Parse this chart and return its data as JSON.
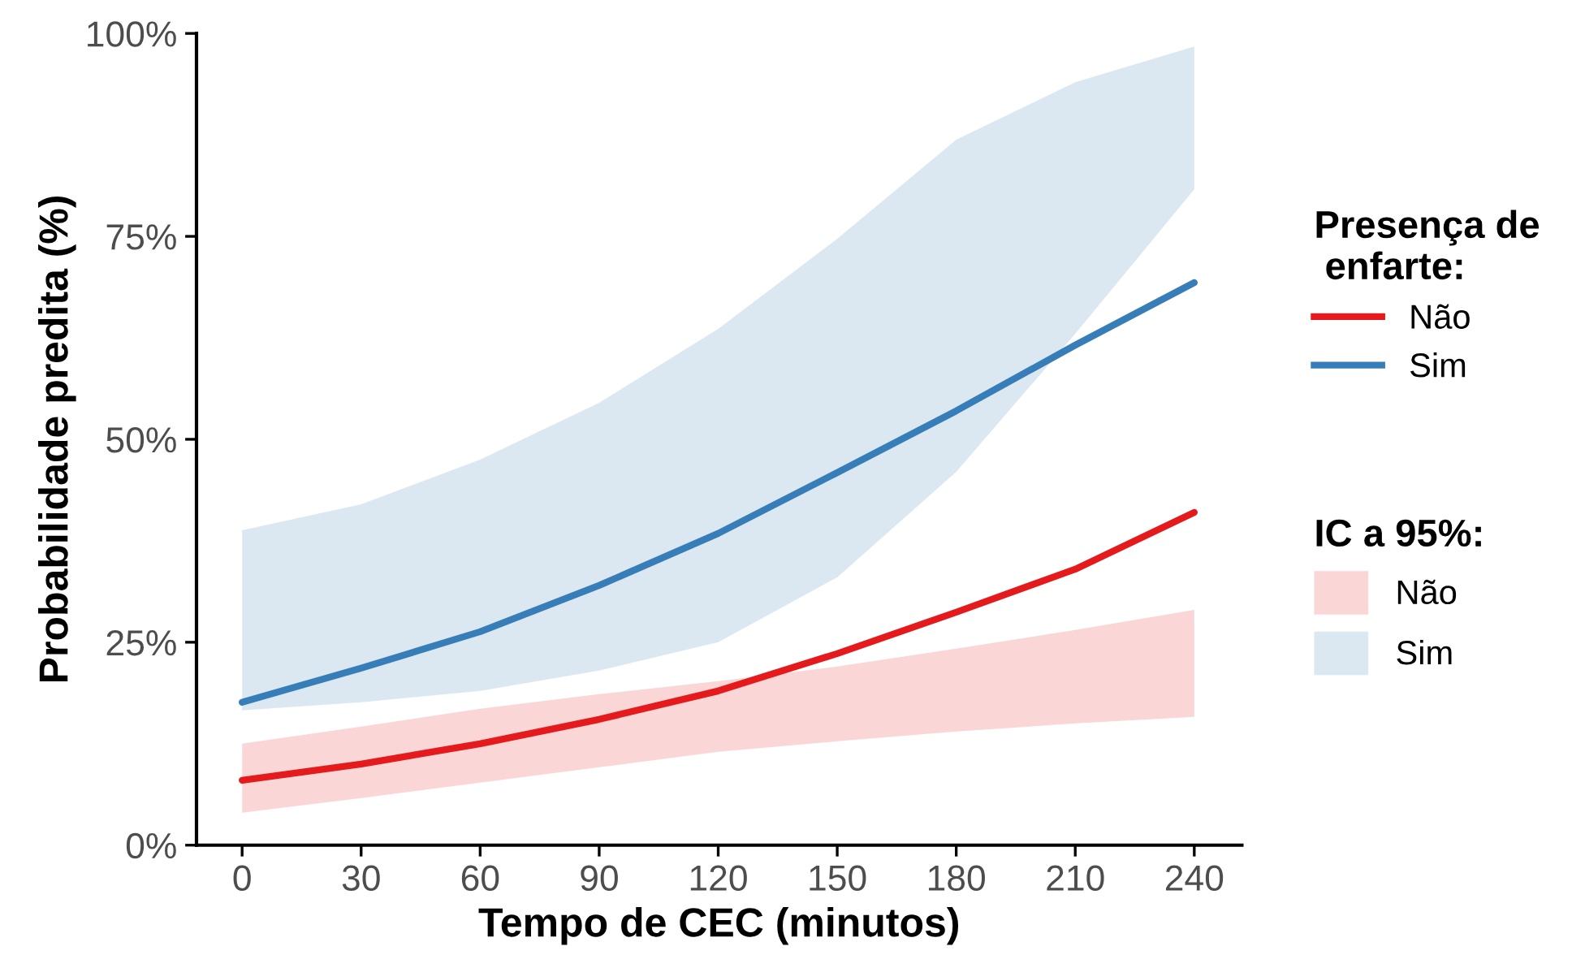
{
  "chart_data": {
    "type": "line",
    "xlabel": "Tempo de CEC (minutos)",
    "ylabel": "Probabilidade predita (%)",
    "legend_title": [
      "Presença de\n enfarte:",
      "IC a 95%:"
    ],
    "legend": "right",
    "grid": false,
    "xlim": [
      -11.5,
      252
    ],
    "xticks": [
      0,
      30,
      60,
      90,
      120,
      150,
      180,
      210,
      240
    ],
    "ylim": [
      0,
      100
    ],
    "yticks": [
      {
        "value": 0,
        "label": "0%"
      },
      {
        "value": 25,
        "label": "25%"
      },
      {
        "value": 50,
        "label": "50%"
      },
      {
        "value": 75,
        "label": "75%"
      },
      {
        "value": 100,
        "label": "100%"
      }
    ],
    "x": [
      0,
      30,
      60,
      90,
      120,
      150,
      180,
      210,
      240
    ],
    "series": [
      {
        "name": "Não",
        "color": "#e41a1c",
        "values": [
          8,
          10,
          12.5,
          15.5,
          19,
          23.6,
          28.7,
          34,
          41
        ],
        "lower": [
          4,
          5.8,
          7.7,
          9.6,
          11.5,
          12.8,
          14,
          15,
          15.8
        ],
        "upper": [
          12.5,
          14.6,
          16.8,
          18.6,
          20.2,
          22,
          24.2,
          26.5,
          29
        ]
      },
      {
        "name": "Sim",
        "color": "#377eb8",
        "values": [
          17.6,
          21.8,
          26.3,
          32,
          38.4,
          45.9,
          53.5,
          61.6,
          69.3
        ],
        "lower": [
          16.6,
          17.6,
          19,
          21.5,
          25,
          33,
          46,
          63,
          80.8
        ],
        "upper": [
          38.8,
          42,
          47.5,
          54.5,
          63.6,
          74.7,
          86.9,
          94,
          98.4
        ]
      }
    ]
  }
}
